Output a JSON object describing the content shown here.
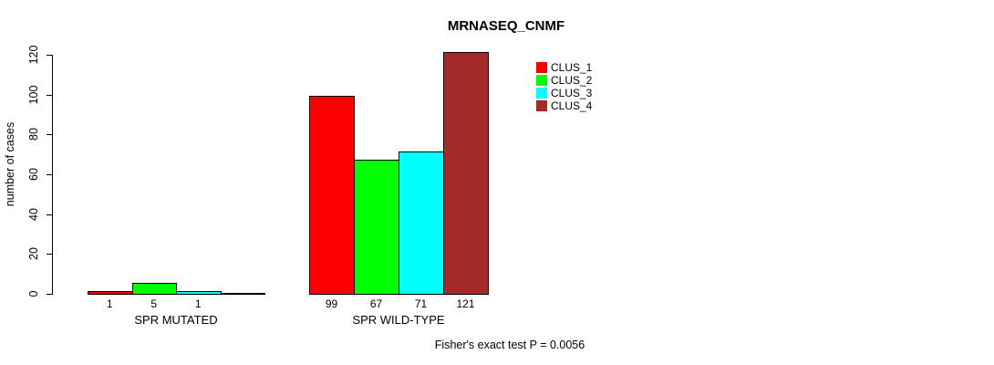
{
  "chart_data": {
    "type": "bar",
    "title": "MRNASEQ_CNMF",
    "ylabel": "number of cases",
    "xlabel": "",
    "ylim": [
      0,
      120
    ],
    "yticks": [
      0,
      20,
      40,
      60,
      80,
      100,
      120
    ],
    "grid": false,
    "legend_position": "top-right-inside",
    "series": [
      {
        "name": "CLUS_1",
        "color": "#FF0000"
      },
      {
        "name": "CLUS_2",
        "color": "#00FF00"
      },
      {
        "name": "CLUS_3",
        "color": "#00FFFF"
      },
      {
        "name": "CLUS_4",
        "color": "#A52A2A"
      }
    ],
    "groups": [
      {
        "label": "SPR MUTATED",
        "values": [
          1,
          5,
          1,
          0
        ],
        "value_labels": [
          "1",
          "5",
          "1",
          ""
        ]
      },
      {
        "label": "SPR WILD-TYPE",
        "values": [
          99,
          67,
          71,
          121
        ],
        "value_labels": [
          "99",
          "67",
          "71",
          "121"
        ]
      }
    ],
    "bar_border_color": "#000000",
    "axis_color": "#000000",
    "background_color": "#FFFFFF",
    "annotation": "Fisher's exact test P = 0.0056"
  }
}
